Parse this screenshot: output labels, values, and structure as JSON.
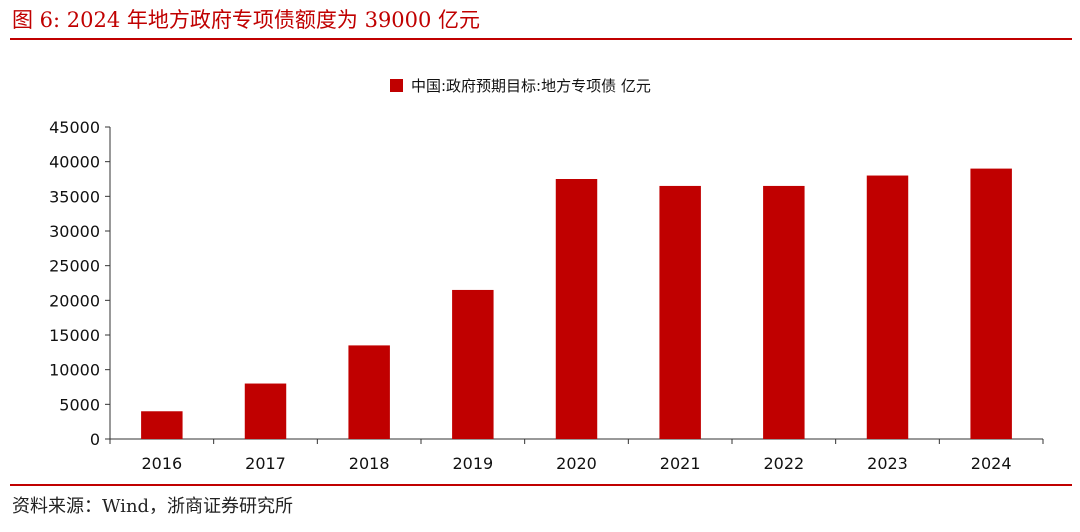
{
  "header": {
    "figure_title": "图 6:   2024 年地方政府专项债额度为 39000 亿元"
  },
  "footer": {
    "source": "资料来源：Wind，浙商证券研究所"
  },
  "colors": {
    "bar": "#c00000",
    "rule": "#c00000",
    "axis": "#333333"
  },
  "chart_data": {
    "type": "bar",
    "title": "",
    "xlabel": "",
    "ylabel": "",
    "categories": [
      "2016",
      "2017",
      "2018",
      "2019",
      "2020",
      "2021",
      "2022",
      "2023",
      "2024"
    ],
    "series": [
      {
        "name": "中国:政府预期目标:地方专项债 亿元",
        "values": [
          4000,
          8000,
          13500,
          21500,
          37500,
          36500,
          36500,
          38000,
          39000
        ]
      }
    ],
    "ylim": [
      0,
      45000
    ],
    "yticks": [
      0,
      5000,
      10000,
      15000,
      20000,
      25000,
      30000,
      35000,
      40000,
      45000
    ],
    "grid": false,
    "legend_position": "top-center"
  }
}
